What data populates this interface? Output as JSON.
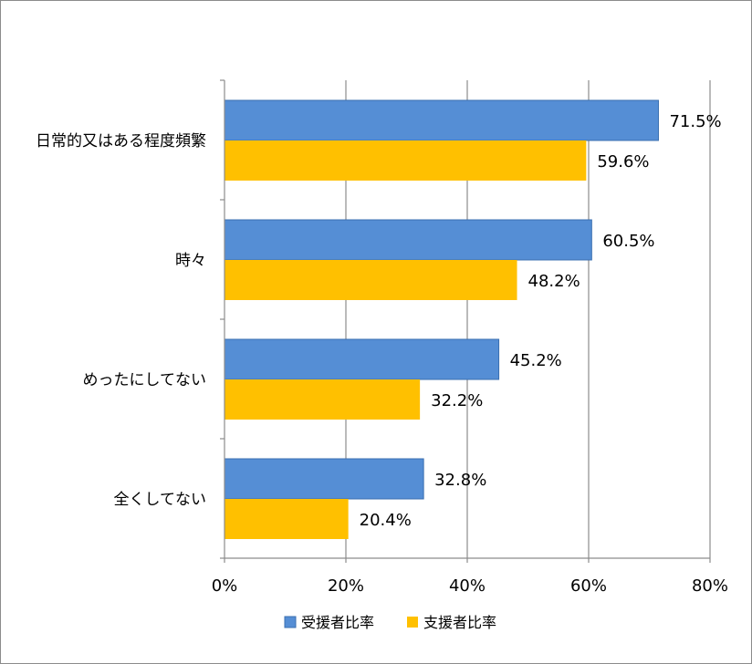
{
  "chart_data": {
    "type": "bar",
    "orientation": "horizontal",
    "categories": [
      "日常的又はある程度頻繁",
      "時々",
      "めったにしてない",
      "全くしてない"
    ],
    "series": [
      {
        "name": "受援者比率",
        "values": [
          71.5,
          60.5,
          45.2,
          32.8
        ],
        "labels": [
          "71.5%",
          "60.5%",
          "45.2%",
          "32.8%"
        ],
        "color": "#558ED5"
      },
      {
        "name": "支援者比率",
        "values": [
          59.6,
          48.2,
          32.2,
          20.4
        ],
        "labels": [
          "59.6%",
          "48.2%",
          "32.2%",
          "20.4%"
        ],
        "color": "#FFC000"
      }
    ],
    "xlim": [
      0,
      80
    ],
    "xticks": [
      0,
      20,
      40,
      60,
      80
    ],
    "xtick_labels": [
      "0%",
      "20%",
      "40%",
      "60%",
      "80%"
    ],
    "grid": true,
    "legend": "bottom",
    "title": "",
    "xlabel": "",
    "ylabel": ""
  }
}
